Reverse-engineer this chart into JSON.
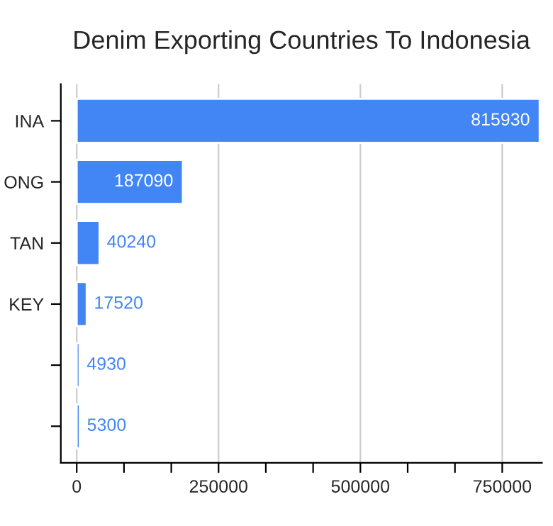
{
  "chart_data": {
    "type": "bar",
    "orientation": "horizontal",
    "title": "Denim Exporting Countries To Indonesia",
    "categories": [
      "INA",
      "ONG",
      "TAN",
      "KEY",
      null,
      null
    ],
    "values": [
      815930,
      187090,
      40240,
      17520,
      4930,
      5300
    ],
    "color": "#4285f4",
    "data_labels": true,
    "xlim": [
      -28000,
      820000
    ],
    "xticks": [
      0,
      {
        "value": 83333,
        "label": null
      },
      {
        "value": 166667,
        "label": null
      },
      250000,
      {
        "value": 333333,
        "label": null
      },
      {
        "value": 416667,
        "label": null
      },
      500000,
      {
        "value": 583333,
        "label": null
      },
      {
        "value": 666667,
        "label": null
      },
      750000
    ],
    "grid": "x"
  }
}
